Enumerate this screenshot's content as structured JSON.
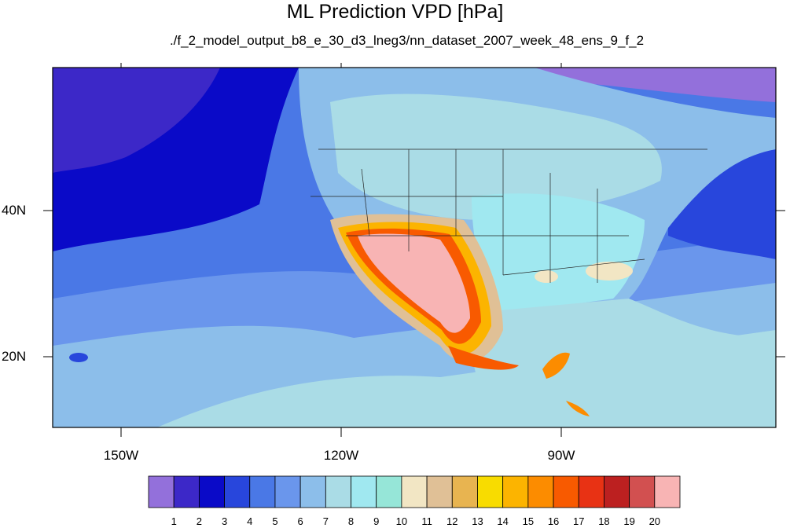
{
  "title": "ML Prediction VPD [hPa]",
  "subtitle": "./f_2_model_output_b8_e_30_d3_lneg3/nn_dataset_2007_week_48_ens_9_f_2",
  "axes": {
    "lat_labels": [
      "40N",
      "20N"
    ],
    "lon_labels": [
      "150W",
      "120W",
      "90W"
    ]
  },
  "colorbar": {
    "labels": [
      "1",
      "2",
      "3",
      "4",
      "5",
      "6",
      "7",
      "8",
      "9",
      "10",
      "11",
      "12",
      "13",
      "14",
      "15",
      "16",
      "17",
      "18",
      "19",
      "20"
    ],
    "colors": [
      "#9370db",
      "#3c28c8",
      "#0a0ac8",
      "#2846dc",
      "#4a78e6",
      "#6a96ec",
      "#8cbeea",
      "#aadce6",
      "#a0e8f0",
      "#96e6d8",
      "#f2e6c4",
      "#e0c096",
      "#e8b450",
      "#f8dc00",
      "#fcb400",
      "#fc8c00",
      "#f85a00",
      "#e83214",
      "#bc2020",
      "#d25050",
      "#f8b4b4"
    ]
  }
}
